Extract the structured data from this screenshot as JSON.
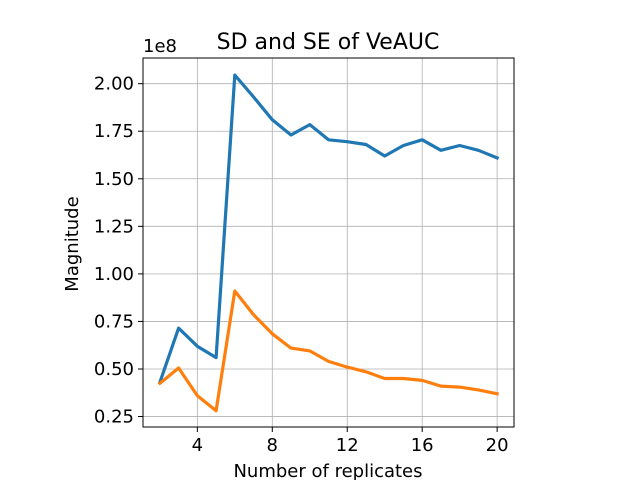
{
  "chart_data": {
    "type": "line",
    "title": "SD and SE of VeAUC",
    "xlabel": "Number of replicates",
    "ylabel": "Magnitude",
    "y_offset_label": "1e8",
    "xlim": [
      1.1,
      20.9
    ],
    "ylim": [
      0.195,
      2.135
    ],
    "xticks": [
      4,
      8,
      12,
      16,
      20
    ],
    "xtick_labels": [
      "4",
      "8",
      "12",
      "16",
      "20"
    ],
    "yticks": [
      0.25,
      0.5,
      0.75,
      1.0,
      1.25,
      1.5,
      1.75,
      2.0
    ],
    "ytick_labels": [
      "0.25",
      "0.50",
      "0.75",
      "1.00",
      "1.25",
      "1.50",
      "1.75",
      "2.00"
    ],
    "grid": true,
    "x": [
      2,
      3,
      4,
      5,
      6,
      7,
      8,
      9,
      10,
      11,
      12,
      13,
      14,
      15,
      16,
      17,
      18,
      19,
      20
    ],
    "series": [
      {
        "color": "#1f77b4",
        "values": [
          0.43,
          0.715,
          0.62,
          0.56,
          2.045,
          1.93,
          1.81,
          1.73,
          1.785,
          1.705,
          1.695,
          1.68,
          1.62,
          1.675,
          1.705,
          1.65,
          1.675,
          1.65,
          1.61
        ]
      },
      {
        "color": "#ff7f0e",
        "values": [
          0.425,
          0.505,
          0.36,
          0.28,
          0.91,
          0.785,
          0.685,
          0.61,
          0.595,
          0.54,
          0.51,
          0.485,
          0.45,
          0.45,
          0.44,
          0.41,
          0.405,
          0.39,
          0.37
        ]
      }
    ]
  }
}
